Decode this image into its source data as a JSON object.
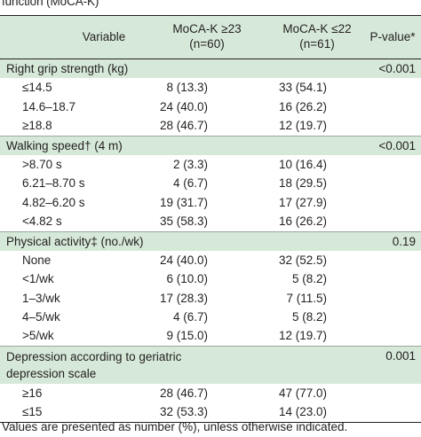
{
  "caption": "function (MoCA-K)",
  "header": {
    "variable": "Variable",
    "group1_line1": "MoCA-K ≥23",
    "group1_line2": "(n=60)",
    "group2_line1": "MoCA-K ≤22",
    "group2_line2": "(n=61)",
    "pvalue": "P-value*"
  },
  "sections": [
    {
      "title": "Right grip strength (kg)",
      "p": "<0.001",
      "rows": [
        {
          "label": "≤14.5",
          "g1": "8 (13.3)",
          "g2": "33 (54.1)"
        },
        {
          "label": "14.6–18.7",
          "g1": "24 (40.0)",
          "g2": "16 (26.2)"
        },
        {
          "label": "≥18.8",
          "g1": "28 (46.7)",
          "g2": "12 (19.7)"
        }
      ]
    },
    {
      "title": "Walking speed† (4 m)",
      "p": "<0.001",
      "rows": [
        {
          "label": ">8.70 s",
          "g1": "2 (3.3)",
          "g2": "10 (16.4)"
        },
        {
          "label": "6.21–8.70 s",
          "g1": "4 (6.7)",
          "g2": "18 (29.5)"
        },
        {
          "label": "4.82–6.20 s",
          "g1": "19 (31.7)",
          "g2": "17 (27.9)"
        },
        {
          "label": "<4.82 s",
          "g1": "35 (58.3)",
          "g2": "16 (26.2)"
        }
      ]
    },
    {
      "title": "Physical activity‡ (no./wk)",
      "p": "0.19",
      "rows": [
        {
          "label": "None",
          "g1": "24 (40.0)",
          "g2": "32 (52.5)"
        },
        {
          "label": "<1/wk",
          "g1": "6 (10.0)",
          "g2": "5 (8.2)"
        },
        {
          "label": "1–3/wk",
          "g1": "17 (28.3)",
          "g2": "7 (11.5)"
        },
        {
          "label": "4–5/wk",
          "g1": "4 (6.7)",
          "g2": "5 (8.2)"
        },
        {
          "label": ">5/wk",
          "g1": "9 (15.0)",
          "g2": "12 (19.7)"
        }
      ]
    },
    {
      "title": "Depression according to geriatric depression scale",
      "p": "0.001",
      "tall": true,
      "rows": [
        {
          "label": "≥16",
          "g1": "28 (46.7)",
          "g2": "47 (77.0)"
        },
        {
          "label": "≤15",
          "g1": "32 (53.3)",
          "g2": "14 (23.0)"
        }
      ]
    }
  ],
  "footnote": "Values are presented as number (%), unless otherwise indicated."
}
